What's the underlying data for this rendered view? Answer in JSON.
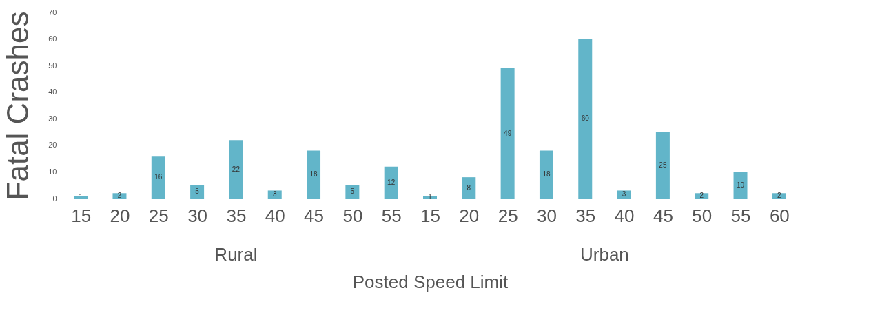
{
  "chart_data": {
    "type": "bar",
    "categories": [
      "15",
      "20",
      "25",
      "30",
      "35",
      "40",
      "45",
      "50",
      "55",
      "15",
      "20",
      "25",
      "30",
      "35",
      "40",
      "45",
      "50",
      "55",
      "60"
    ],
    "values": [
      1,
      2,
      16,
      5,
      22,
      3,
      18,
      5,
      12,
      1,
      8,
      49,
      18,
      60,
      3,
      25,
      2,
      10,
      2
    ],
    "color": "#62b5c9",
    "xlabel": "Posted Speed Limit",
    "ylabel": "Fatal Crashes",
    "ylim": [
      0,
      70
    ],
    "yticks": [
      0,
      10,
      20,
      30,
      40,
      50,
      60,
      70
    ],
    "data_labels": true,
    "grid": false,
    "annotations": [
      "Rural",
      "Urban"
    ]
  }
}
